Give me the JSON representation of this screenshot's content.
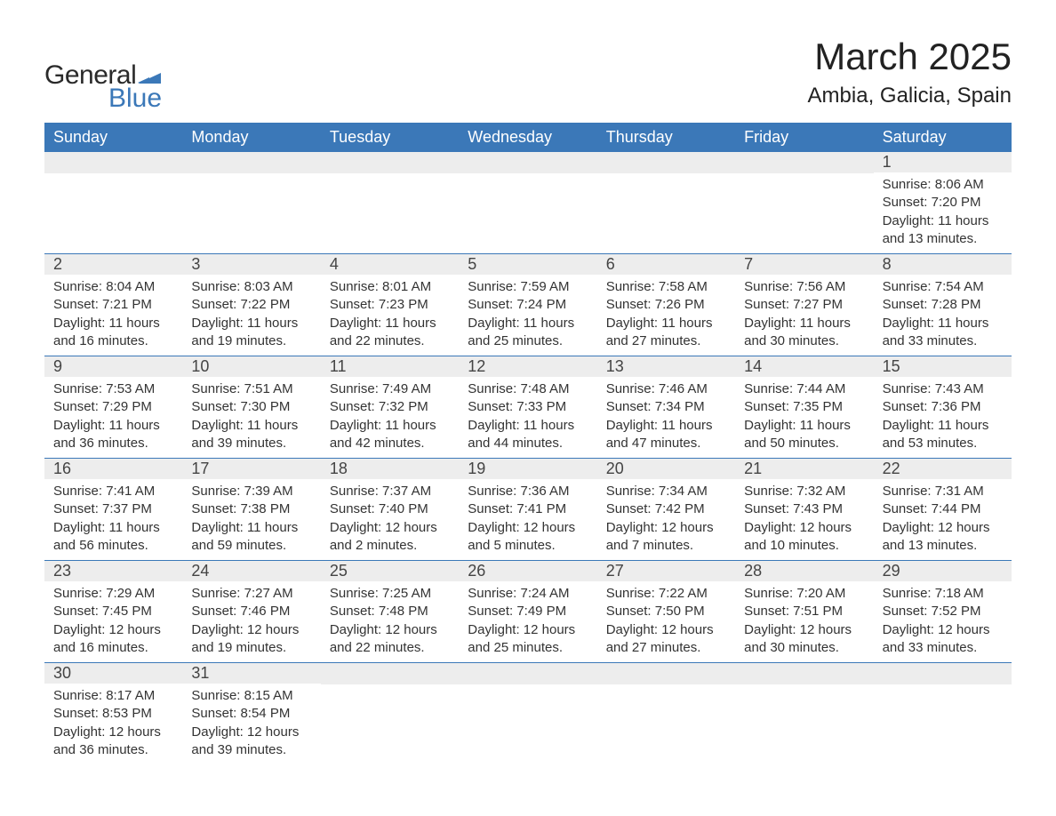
{
  "logo": {
    "word1": "General",
    "word2": "Blue",
    "word1_color": "#2a2a2a",
    "word2_color": "#3b78b8",
    "flag_color": "#3b78b8"
  },
  "title": "March 2025",
  "location": "Ambia, Galicia, Spain",
  "colors": {
    "header_bg": "#3b78b8",
    "header_text": "#ffffff",
    "daynum_bg": "#ededed",
    "daynum_text": "#444444",
    "body_text": "#333333",
    "week_border": "#3b78b8",
    "background": "#ffffff"
  },
  "typography": {
    "title_fontsize": 42,
    "location_fontsize": 24,
    "dayheader_fontsize": 18,
    "daynum_fontsize": 18,
    "body_fontsize": 15,
    "logo_fontsize": 30
  },
  "layout": {
    "columns": 7,
    "column_headers": [
      "Sunday",
      "Monday",
      "Tuesday",
      "Wednesday",
      "Thursday",
      "Friday",
      "Saturday"
    ]
  },
  "weeks": [
    [
      null,
      null,
      null,
      null,
      null,
      null,
      {
        "n": "1",
        "sunrise": "8:06 AM",
        "sunset": "7:20 PM",
        "daylight": "11 hours and 13 minutes."
      }
    ],
    [
      {
        "n": "2",
        "sunrise": "8:04 AM",
        "sunset": "7:21 PM",
        "daylight": "11 hours and 16 minutes."
      },
      {
        "n": "3",
        "sunrise": "8:03 AM",
        "sunset": "7:22 PM",
        "daylight": "11 hours and 19 minutes."
      },
      {
        "n": "4",
        "sunrise": "8:01 AM",
        "sunset": "7:23 PM",
        "daylight": "11 hours and 22 minutes."
      },
      {
        "n": "5",
        "sunrise": "7:59 AM",
        "sunset": "7:24 PM",
        "daylight": "11 hours and 25 minutes."
      },
      {
        "n": "6",
        "sunrise": "7:58 AM",
        "sunset": "7:26 PM",
        "daylight": "11 hours and 27 minutes."
      },
      {
        "n": "7",
        "sunrise": "7:56 AM",
        "sunset": "7:27 PM",
        "daylight": "11 hours and 30 minutes."
      },
      {
        "n": "8",
        "sunrise": "7:54 AM",
        "sunset": "7:28 PM",
        "daylight": "11 hours and 33 minutes."
      }
    ],
    [
      {
        "n": "9",
        "sunrise": "7:53 AM",
        "sunset": "7:29 PM",
        "daylight": "11 hours and 36 minutes."
      },
      {
        "n": "10",
        "sunrise": "7:51 AM",
        "sunset": "7:30 PM",
        "daylight": "11 hours and 39 minutes."
      },
      {
        "n": "11",
        "sunrise": "7:49 AM",
        "sunset": "7:32 PM",
        "daylight": "11 hours and 42 minutes."
      },
      {
        "n": "12",
        "sunrise": "7:48 AM",
        "sunset": "7:33 PM",
        "daylight": "11 hours and 44 minutes."
      },
      {
        "n": "13",
        "sunrise": "7:46 AM",
        "sunset": "7:34 PM",
        "daylight": "11 hours and 47 minutes."
      },
      {
        "n": "14",
        "sunrise": "7:44 AM",
        "sunset": "7:35 PM",
        "daylight": "11 hours and 50 minutes."
      },
      {
        "n": "15",
        "sunrise": "7:43 AM",
        "sunset": "7:36 PM",
        "daylight": "11 hours and 53 minutes."
      }
    ],
    [
      {
        "n": "16",
        "sunrise": "7:41 AM",
        "sunset": "7:37 PM",
        "daylight": "11 hours and 56 minutes."
      },
      {
        "n": "17",
        "sunrise": "7:39 AM",
        "sunset": "7:38 PM",
        "daylight": "11 hours and 59 minutes."
      },
      {
        "n": "18",
        "sunrise": "7:37 AM",
        "sunset": "7:40 PM",
        "daylight": "12 hours and 2 minutes."
      },
      {
        "n": "19",
        "sunrise": "7:36 AM",
        "sunset": "7:41 PM",
        "daylight": "12 hours and 5 minutes."
      },
      {
        "n": "20",
        "sunrise": "7:34 AM",
        "sunset": "7:42 PM",
        "daylight": "12 hours and 7 minutes."
      },
      {
        "n": "21",
        "sunrise": "7:32 AM",
        "sunset": "7:43 PM",
        "daylight": "12 hours and 10 minutes."
      },
      {
        "n": "22",
        "sunrise": "7:31 AM",
        "sunset": "7:44 PM",
        "daylight": "12 hours and 13 minutes."
      }
    ],
    [
      {
        "n": "23",
        "sunrise": "7:29 AM",
        "sunset": "7:45 PM",
        "daylight": "12 hours and 16 minutes."
      },
      {
        "n": "24",
        "sunrise": "7:27 AM",
        "sunset": "7:46 PM",
        "daylight": "12 hours and 19 minutes."
      },
      {
        "n": "25",
        "sunrise": "7:25 AM",
        "sunset": "7:48 PM",
        "daylight": "12 hours and 22 minutes."
      },
      {
        "n": "26",
        "sunrise": "7:24 AM",
        "sunset": "7:49 PM",
        "daylight": "12 hours and 25 minutes."
      },
      {
        "n": "27",
        "sunrise": "7:22 AM",
        "sunset": "7:50 PM",
        "daylight": "12 hours and 27 minutes."
      },
      {
        "n": "28",
        "sunrise": "7:20 AM",
        "sunset": "7:51 PM",
        "daylight": "12 hours and 30 minutes."
      },
      {
        "n": "29",
        "sunrise": "7:18 AM",
        "sunset": "7:52 PM",
        "daylight": "12 hours and 33 minutes."
      }
    ],
    [
      {
        "n": "30",
        "sunrise": "8:17 AM",
        "sunset": "8:53 PM",
        "daylight": "12 hours and 36 minutes."
      },
      {
        "n": "31",
        "sunrise": "8:15 AM",
        "sunset": "8:54 PM",
        "daylight": "12 hours and 39 minutes."
      },
      null,
      null,
      null,
      null,
      null
    ]
  ],
  "labels": {
    "sunrise_prefix": "Sunrise: ",
    "sunset_prefix": "Sunset: ",
    "daylight_prefix": "Daylight: "
  }
}
